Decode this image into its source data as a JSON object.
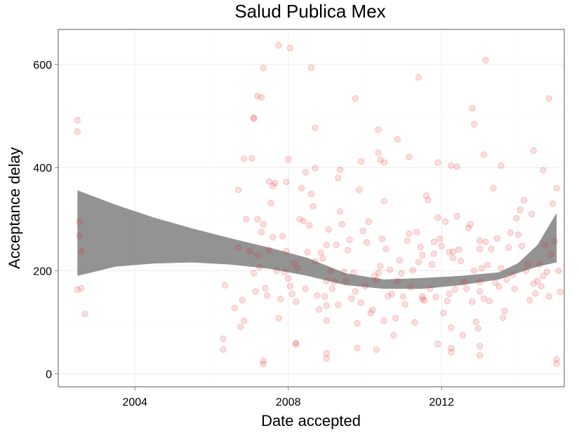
{
  "chart_data": {
    "type": "scatter",
    "title": "Salud Publica Mex",
    "xlabel": "Date accepted",
    "ylabel": "Acceptance delay",
    "x_scale": "date",
    "xlim": [
      2002.0,
      2015.2
    ],
    "ylim": [
      -25,
      668
    ],
    "x_ticks": [
      2004,
      2008,
      2012
    ],
    "x_tick_labels": [
      "2004",
      "2008",
      "2012"
    ],
    "y_ticks": [
      0,
      200,
      400,
      600
    ],
    "y_tick_labels": [
      "0",
      "200",
      "400",
      "600"
    ],
    "grid": true,
    "legend": "none",
    "point_color": "#e31a1c",
    "point_alpha": 0.15,
    "smooth_color": "#808080",
    "smooth_band": {
      "x": [
        2002.5,
        2003.5,
        2004.5,
        2005.5,
        2006.5,
        2007.5,
        2008.5,
        2009.5,
        2010.5,
        2011.5,
        2012.5,
        2013.5,
        2014.0,
        2014.5,
        2015.0
      ],
      "lower": [
        190,
        208,
        214,
        216,
        212,
        204,
        190,
        172,
        165,
        165,
        172,
        183,
        196,
        208,
        216
      ],
      "upper": [
        356,
        328,
        303,
        282,
        263,
        245,
        225,
        195,
        183,
        186,
        190,
        197,
        215,
        250,
        312
      ]
    },
    "points": {
      "x": [
        2002.5,
        2002.5,
        2002.55,
        2002.55,
        2002.6,
        2002.6,
        2002.5,
        2002.7,
        2006.3,
        2006.3,
        2006.35,
        2006.6,
        2006.7,
        2006.75,
        2006.8,
        2006.85,
        2006.9,
        2007.0,
        2007.05,
        2007.1,
        2007.15,
        2007.2,
        2007.2,
        2007.25,
        2007.3,
        2007.35,
        2007.4,
        2007.45,
        2007.5,
        2007.6,
        2007.65,
        2007.7,
        2007.75,
        2007.8,
        2007.85,
        2007.9,
        2007.95,
        2008.0,
        2008.05,
        2008.1,
        2008.15,
        2008.2,
        2008.25,
        2008.3,
        2008.35,
        2008.4,
        2008.45,
        2008.5,
        2008.55,
        2008.6,
        2008.65,
        2008.7,
        2008.75,
        2008.8,
        2008.85,
        2008.9,
        2008.95,
        2009.0,
        2009.0,
        2009.0,
        2009.0,
        2009.05,
        2009.1,
        2009.15,
        2009.2,
        2009.25,
        2009.3,
        2009.35,
        2009.4,
        2009.45,
        2009.5,
        2009.55,
        2009.6,
        2009.65,
        2009.7,
        2009.75,
        2009.8,
        2009.85,
        2009.9,
        2009.95,
        2010.0,
        2010.05,
        2010.1,
        2010.15,
        2010.2,
        2010.25,
        2010.3,
        2010.35,
        2010.4,
        2010.45,
        2010.5,
        2010.55,
        2010.6,
        2010.65,
        2010.7,
        2010.75,
        2010.8,
        2010.85,
        2010.9,
        2010.95,
        2011.0,
        2011.05,
        2011.1,
        2011.15,
        2011.2,
        2011.25,
        2011.3,
        2011.35,
        2011.4,
        2011.45,
        2011.5,
        2011.55,
        2011.6,
        2011.65,
        2011.7,
        2011.75,
        2011.8,
        2011.85,
        2011.9,
        2011.95,
        2012.0,
        2012.05,
        2012.1,
        2012.15,
        2012.2,
        2012.25,
        2012.3,
        2012.35,
        2012.4,
        2012.45,
        2012.5,
        2012.55,
        2012.6,
        2012.65,
        2012.7,
        2012.75,
        2012.8,
        2012.85,
        2012.9,
        2012.95,
        2013.0,
        2013.0,
        2013.0,
        2013.0,
        2013.05,
        2013.1,
        2013.15,
        2013.2,
        2013.25,
        2013.3,
        2013.35,
        2013.4,
        2013.45,
        2013.5,
        2013.55,
        2013.6,
        2013.65,
        2013.7,
        2013.75,
        2013.8,
        2013.85,
        2013.9,
        2013.95,
        2014.0,
        2014.05,
        2014.1,
        2014.15,
        2014.2,
        2014.25,
        2014.3,
        2014.35,
        2014.4,
        2014.45,
        2014.5,
        2014.55,
        2014.6,
        2014.65,
        2014.7,
        2014.75,
        2014.8,
        2014.85,
        2014.9,
        2014.95,
        2015.0,
        2015.05,
        2015.1,
        2007.1,
        2007.1,
        2007.2,
        2007.3,
        2007.35,
        2007.5,
        2007.6,
        2007.75,
        2008.05,
        2008.6,
        2008.7,
        2009.75,
        2010.35,
        2010.85,
        2011.4,
        2012.8,
        2012.85,
        2013.15,
        2014.4,
        2014.8,
        2008.7,
        2009.3,
        2010.35,
        2010.4,
        2012.25,
        2008.0,
        2006.7,
        2006.85,
        2007.55,
        2007.95,
        2008.45,
        2009.35,
        2009.9,
        2011.15,
        2011.9,
        2012.4,
        2013.1,
        2013.55,
        2014.65,
        2010.5,
        2010.5,
        2011.5,
        2011.5,
        2011.8,
        2012.2,
        2012.3,
        2008.2,
        2008.2,
        2009.8,
        2010.3,
        2009.0,
        2009.0,
        2011.9,
        2012.25,
        2012.25,
        2013.0,
        2013.0,
        2015.0,
        2015.0,
        2007.35,
        2007.35
      ],
      "y": [
        492,
        470,
        295,
        268,
        238,
        166,
        163,
        116,
        68,
        47,
        172,
        128,
        245,
        91,
        143,
        103,
        300,
        238,
        418,
        195,
        160,
        300,
        230,
        207,
        275,
        290,
        166,
        152,
        240,
        265,
        370,
        200,
        108,
        145,
        267,
        197,
        238,
        185,
        170,
        155,
        214,
        140,
        205,
        300,
        360,
        296,
        165,
        236,
        288,
        349,
        325,
        218,
        152,
        125,
        235,
        224,
        150,
        250,
        180,
        132,
        103,
        280,
        199,
        165,
        178,
        250,
        134,
        315,
        290,
        198,
        180,
        240,
        260,
        146,
        196,
        160,
        98,
        357,
        138,
        277,
        170,
        255,
        295,
        118,
        124,
        190,
        182,
        196,
        209,
        262,
        335,
        242,
        151,
        202,
        155,
        75,
        108,
        180,
        220,
        195,
        150,
        135,
        258,
        272,
        168,
        201,
        100,
        275,
        217,
        246,
        230,
        142,
        346,
        337,
        165,
        212,
        233,
        149,
        303,
        262,
        248,
        118,
        295,
        141,
        155,
        90,
        237,
        164,
        306,
        241,
        219,
        75,
        178,
        165,
        283,
        290,
        140,
        200,
        101,
        88,
        242,
        160,
        258,
        178,
        205,
        146,
        256,
        211,
        141,
        242,
        360,
        177,
        263,
        169,
        205,
        109,
        122,
        183,
        245,
        274,
        192,
        165,
        302,
        270,
        318,
        248,
        337,
        200,
        213,
        143,
        310,
        175,
        156,
        180,
        212,
        170,
        190,
        250,
        198,
        150,
        232,
        330,
        257,
        360,
        200,
        159,
        497,
        495,
        539,
        536,
        593,
        373,
        364,
        637,
        632,
        594,
        477,
        534,
        474,
        455,
        575,
        515,
        484,
        608,
        433,
        534,
        399,
        380,
        429,
        415,
        404,
        416,
        357,
        417,
        331,
        372,
        391,
        396,
        412,
        421,
        410,
        402,
        425,
        404,
        395,
        410,
        103,
        150,
        145,
        256,
        236,
        225,
        60,
        57,
        50,
        47,
        40,
        30,
        58,
        50,
        42,
        54,
        36,
        28,
        20,
        25,
        19
      ]
    }
  }
}
